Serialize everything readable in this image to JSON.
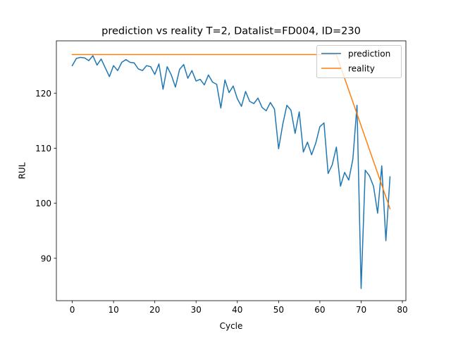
{
  "chart_data": {
    "type": "line",
    "title": "prediction vs reality T=2, Datalist=FD004, ID=230",
    "xlabel": "Cycle",
    "ylabel": "RUL",
    "xlim": [
      -3.85,
      80.85
    ],
    "ylim": [
      82.3,
      129.5
    ],
    "xticks": [
      0,
      10,
      20,
      30,
      40,
      50,
      60,
      70,
      80
    ],
    "yticks": [
      90,
      100,
      110,
      120
    ],
    "grid": false,
    "legend": "top-right",
    "series": [
      {
        "name": "prediction",
        "color": "#1f77b4",
        "x": [
          0,
          1,
          2,
          3,
          4,
          5,
          6,
          7,
          8,
          9,
          10,
          11,
          12,
          13,
          14,
          15,
          16,
          17,
          18,
          19,
          20,
          21,
          22,
          23,
          24,
          25,
          26,
          27,
          28,
          29,
          30,
          31,
          32,
          33,
          34,
          35,
          36,
          37,
          38,
          39,
          40,
          41,
          42,
          43,
          44,
          45,
          46,
          47,
          48,
          49,
          50,
          51,
          52,
          53,
          54,
          55,
          56,
          57,
          58,
          59,
          60,
          61,
          62,
          63,
          64,
          65,
          66,
          67,
          68,
          69,
          70,
          71,
          72,
          73,
          74,
          75,
          76,
          77
        ],
        "y": [
          125.0,
          126.3,
          126.5,
          126.4,
          125.9,
          126.8,
          125.1,
          126.2,
          124.6,
          123.0,
          125.0,
          124.1,
          125.6,
          126.1,
          125.6,
          125.5,
          124.4,
          124.1,
          125.0,
          124.8,
          123.4,
          125.3,
          120.7,
          124.8,
          123.3,
          121.1,
          124.3,
          125.2,
          122.7,
          124.1,
          122.2,
          122.5,
          121.5,
          123.3,
          122.0,
          121.6,
          117.3,
          122.4,
          120.1,
          121.3,
          119.0,
          117.6,
          120.3,
          118.5,
          118.1,
          119.1,
          117.4,
          116.8,
          118.3,
          117.1,
          109.9,
          114.3,
          117.8,
          116.9,
          112.7,
          116.6,
          109.3,
          111.1,
          108.8,
          110.9,
          113.9,
          114.6,
          105.4,
          107.0,
          110.2,
          103.1,
          105.6,
          104.2,
          108.0,
          117.8,
          84.5,
          106.0,
          105.0,
          103.1,
          98.2,
          106.8,
          93.2,
          104.8
        ]
      },
      {
        "name": "reality",
        "color": "#ff7f0e",
        "x": [
          0,
          64,
          77
        ],
        "y": [
          127,
          127,
          99
        ]
      }
    ]
  }
}
